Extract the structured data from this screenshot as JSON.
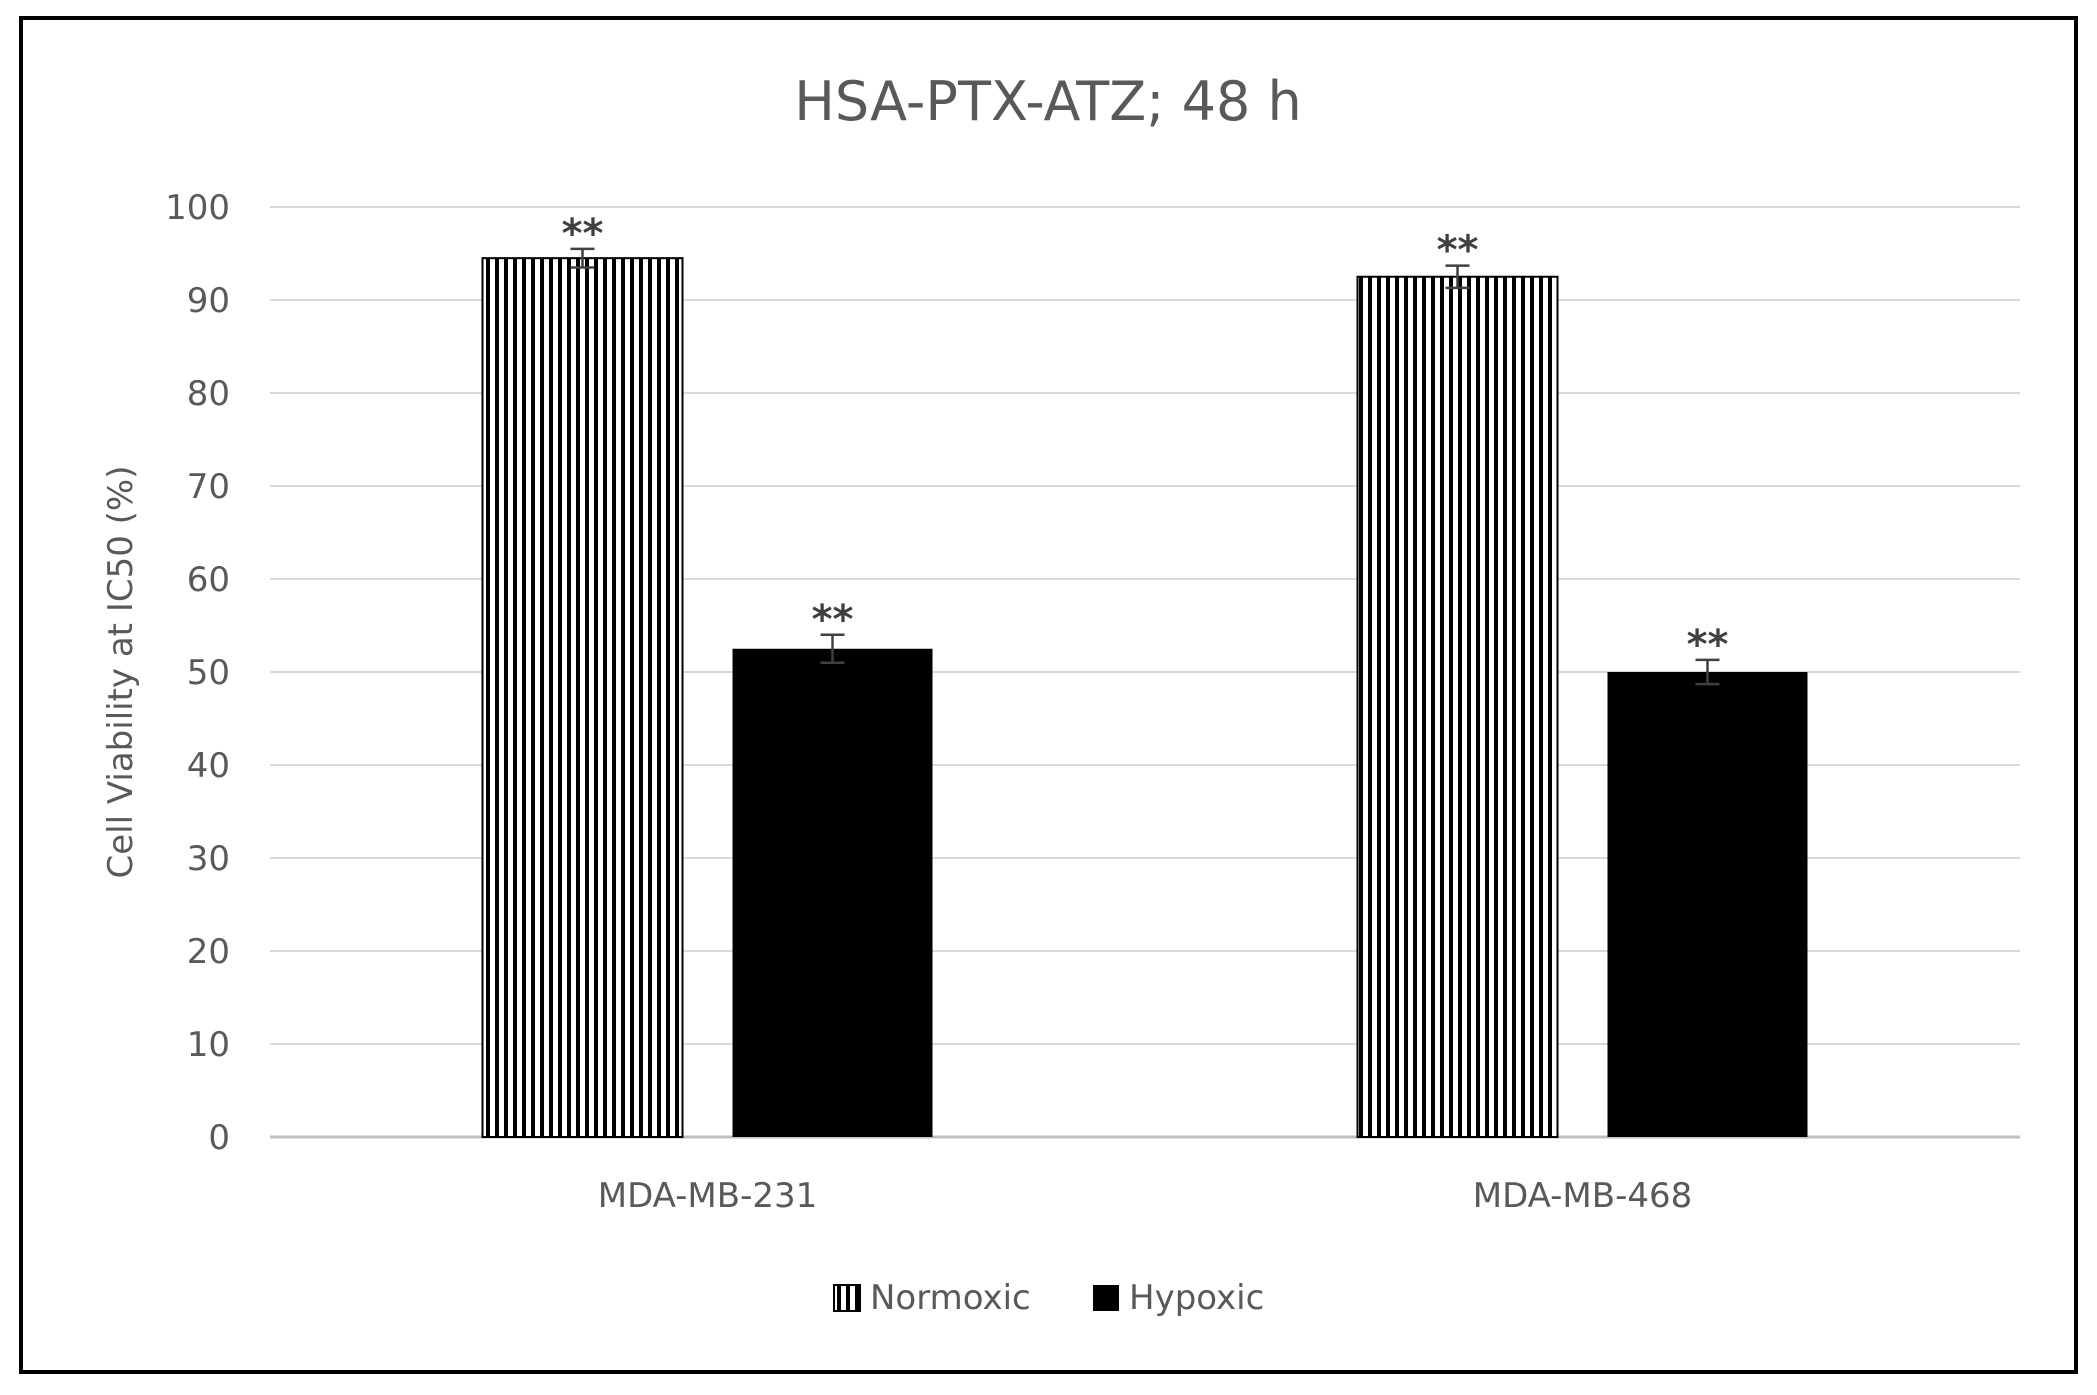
{
  "chart_data": {
    "type": "bar",
    "title": "HSA-PTX-ATZ; 48 h",
    "xlabel": "",
    "ylabel": "Cell Viability at IC50 (%)",
    "ylim": [
      0,
      100
    ],
    "yticks": [
      "0",
      "10",
      "20",
      "30",
      "40",
      "50",
      "60",
      "70",
      "80",
      "90",
      "100"
    ],
    "categories": [
      "MDA-MB-231",
      "MDA-MB-468"
    ],
    "series": [
      {
        "name": "Normoxic",
        "values": [
          94.5,
          92.5
        ],
        "errors": [
          1.0,
          1.2
        ],
        "annotations": [
          "**",
          "**"
        ],
        "fill": "vertical-stripes"
      },
      {
        "name": "Hypoxic",
        "values": [
          52.5,
          50.0
        ],
        "errors": [
          1.5,
          1.3
        ],
        "annotations": [
          "**",
          "**"
        ],
        "fill": "#000000"
      }
    ],
    "grid": true,
    "legend_position": "bottom",
    "colors": {
      "stripe": "#000000",
      "text": "#595959",
      "title": "#595959",
      "grid": "#d9d9d9",
      "axis": "#bfbfbf",
      "frame": "#000000"
    }
  }
}
